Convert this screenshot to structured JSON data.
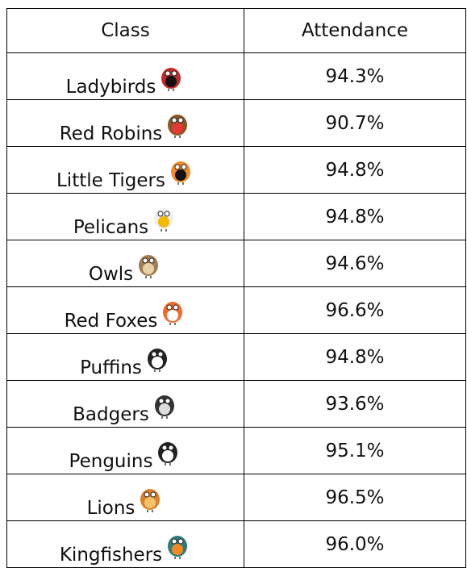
{
  "table": {
    "header": [
      "Class",
      "Attendance"
    ],
    "rows": [
      [
        "Ladybirds",
        "94.3%"
      ],
      [
        "Red Robins",
        "90.7%"
      ],
      [
        "Little Tigers",
        "94.8%"
      ],
      [
        "Pelicans",
        "94.8%"
      ],
      [
        "Owls",
        "94.6%"
      ],
      [
        "Red Foxes",
        "96.6%"
      ],
      [
        "Puffins",
        "94.8%"
      ],
      [
        "Badgers",
        "93.6%"
      ],
      [
        "Penguins",
        "95.1%"
      ],
      [
        "Lions",
        "96.5%"
      ],
      [
        "Kingfishers",
        "96.0%"
      ]
    ]
  }
}
